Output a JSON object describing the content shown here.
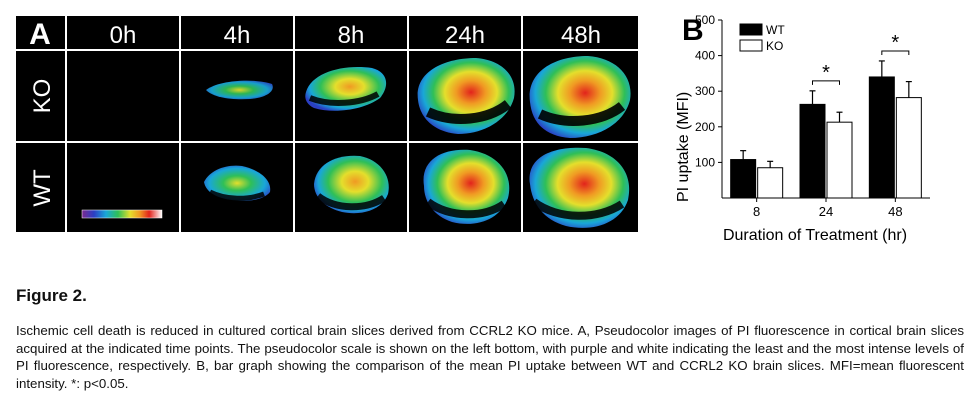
{
  "panel_a": {
    "label": "A",
    "timepoints": [
      "0h",
      "4h",
      "8h",
      "24h",
      "48h"
    ],
    "rows": [
      "KO",
      "WT"
    ],
    "scale_colors": [
      "#7a2a8f",
      "#2b3fc4",
      "#19a7d8",
      "#2fbf57",
      "#e4df2c",
      "#f09a23",
      "#e2231c",
      "#ffffff"
    ]
  },
  "chart_data": {
    "type": "bar",
    "panel_label": "B",
    "categories": [
      "8",
      "24",
      "48"
    ],
    "series": [
      {
        "name": "WT",
        "values": [
          108,
          263,
          340
        ],
        "errors": [
          25,
          38,
          45
        ]
      },
      {
        "name": "KO",
        "values": [
          85,
          213,
          282
        ],
        "errors": [
          18,
          28,
          45
        ]
      }
    ],
    "xlabel": "Duration of Treatment (hr)",
    "ylabel": "PI uptake (MFI)",
    "ylim": [
      0,
      500
    ],
    "yticks": [
      100,
      200,
      300,
      400,
      500
    ],
    "significance": [
      {
        "category": "24",
        "label": "*"
      },
      {
        "category": "48",
        "label": "*"
      }
    ],
    "legend_position": "top-left",
    "colors": {
      "WT": "#000000",
      "KO": "#ffffff"
    }
  },
  "figure": {
    "title": "Figure 2.",
    "caption": "Ischemic cell death is reduced in cultured cortical brain slices derived from CCRL2 KO mice. A, Pseudocolor images of PI fluorescence in cortical brain slices acquired at the indicated time points. The pseudocolor scale is shown on the left bottom, with purple and white indicating the least and the most intense levels of PI fluorescence, respectively. B, bar graph showing the comparison of the mean PI uptake between WT and CCRL2 KO brain slices. MFI=mean fluorescent intensity. *: p<0.05."
  }
}
